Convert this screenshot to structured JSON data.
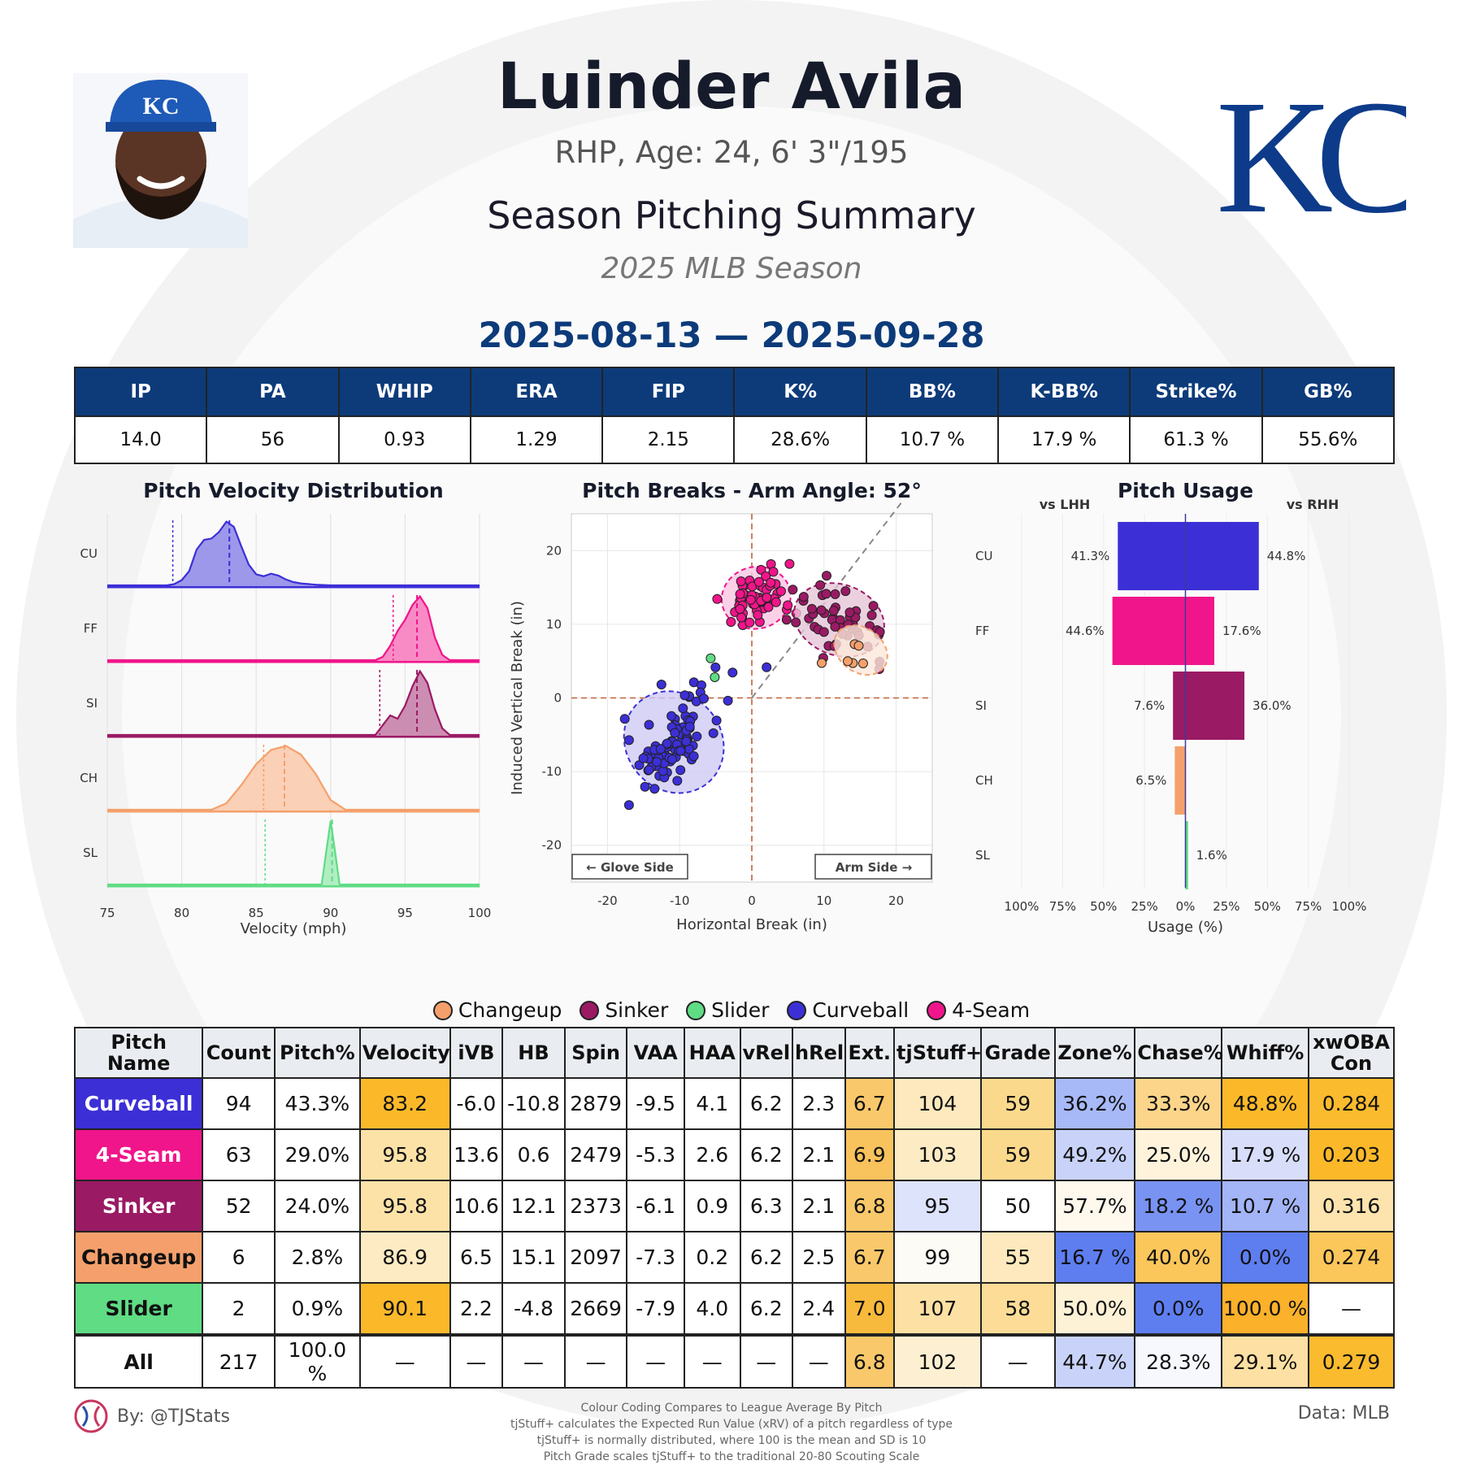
{
  "header": {
    "player_name": "Luinder Avila",
    "bio": "RHP, Age: 24, 6' 3\"/195",
    "summary_title": "Season Pitching Summary",
    "season": "2025 MLB Season",
    "date_range": "2025-08-13 — 2025-09-28"
  },
  "team_logo_text": "KC",
  "season_stats": {
    "headers": [
      "IP",
      "PA",
      "WHIP",
      "ERA",
      "FIP",
      "K%",
      "BB%",
      "K-BB%",
      "Strike%",
      "GB%"
    ],
    "values": [
      "14.0",
      "56",
      "0.93",
      "1.29",
      "2.15",
      "28.6%",
      "10.7 %",
      "17.9 %",
      "61.3 %",
      "55.6%"
    ]
  },
  "colors": {
    "Curveball": "#3c2fd6",
    "4-Seam": "#f0158a",
    "Sinker": "#9a1a64",
    "Changeup": "#f5a06c",
    "Slider": "#5fdc84",
    "header_blue": "#0d3b7a"
  },
  "chart_data": [
    {
      "type": "area",
      "title": "Pitch Velocity Distribution",
      "xlabel": "Velocity (mph)",
      "xlim": [
        75,
        100
      ],
      "xticks": [
        75,
        80,
        85,
        90,
        95,
        100
      ],
      "series": [
        {
          "name": "CU",
          "pitch": "Curveball",
          "mean": 83.2,
          "league_mean": 79.4,
          "x": [
            79,
            79.5,
            80,
            80.5,
            81,
            81.5,
            82,
            82.5,
            83,
            83.5,
            84,
            84.5,
            85,
            85.5,
            86,
            86.5,
            87,
            87.5,
            88,
            89,
            90
          ],
          "y": [
            0,
            0.02,
            0.08,
            0.22,
            0.55,
            0.7,
            0.72,
            0.82,
            0.98,
            0.9,
            0.6,
            0.32,
            0.17,
            0.14,
            0.18,
            0.15,
            0.09,
            0.05,
            0.03,
            0.01,
            0
          ]
        },
        {
          "name": "FF",
          "pitch": "4-Seam",
          "mean": 95.8,
          "league_mean": 94.2,
          "x": [
            93,
            93.5,
            94,
            94.5,
            95,
            95.5,
            96,
            96.5,
            97,
            97.5,
            98
          ],
          "y": [
            0,
            0.05,
            0.22,
            0.45,
            0.62,
            0.85,
            0.98,
            0.8,
            0.35,
            0.08,
            0
          ]
        },
        {
          "name": "SI",
          "pitch": "Sinker",
          "mean": 95.8,
          "league_mean": 93.3,
          "x": [
            93,
            93.5,
            94,
            94.5,
            95,
            95.5,
            96,
            96.5,
            97,
            97.5,
            98
          ],
          "y": [
            0,
            0.15,
            0.3,
            0.25,
            0.45,
            0.75,
            0.98,
            0.8,
            0.4,
            0.1,
            0
          ]
        },
        {
          "name": "CH",
          "pitch": "Changeup",
          "mean": 86.9,
          "league_mean": 85.5,
          "x": [
            82,
            83,
            84,
            85,
            86,
            87,
            88,
            89,
            90,
            91
          ],
          "y": [
            0,
            0.1,
            0.38,
            0.7,
            0.92,
            0.98,
            0.85,
            0.55,
            0.15,
            0
          ]
        },
        {
          "name": "SL",
          "pitch": "Slider",
          "mean": 90.1,
          "league_mean": 85.6,
          "x": [
            89.4,
            89.7,
            90,
            90.3,
            90.6
          ],
          "y": [
            0,
            0.5,
            0.98,
            0.5,
            0
          ]
        }
      ]
    },
    {
      "type": "scatter",
      "title": "Pitch Breaks - Arm Angle: 52°",
      "xlabel": "Horizontal Break (in)",
      "ylabel": "Induced Vertical Break (in)",
      "xlim": [
        -25,
        25
      ],
      "ylim": [
        -25,
        25
      ],
      "xticks": [
        -20,
        -10,
        0,
        10,
        20
      ],
      "yticks": [
        -20,
        -10,
        0,
        10,
        20
      ],
      "arm_angle_deg": 52,
      "side_labels": {
        "left": "← Glove Side",
        "right": "Arm Side →"
      },
      "clusters": [
        {
          "pitch": "Curveball",
          "count": 94,
          "center": [
            -10.8,
            -6.0
          ],
          "spread": [
            3.3,
            3.6
          ],
          "corr": 0.65
        },
        {
          "pitch": "4-Seam",
          "count": 63,
          "center": [
            0.6,
            13.6
          ],
          "spread": [
            2.4,
            2.1
          ],
          "corr": 0.2
        },
        {
          "pitch": "Sinker",
          "count": 52,
          "center": [
            12.1,
            10.6
          ],
          "spread": [
            3.2,
            2.4
          ],
          "corr": -0.3
        },
        {
          "pitch": "Changeup",
          "count": 6,
          "center": [
            15.1,
            6.5
          ],
          "spread": [
            2.0,
            1.5
          ],
          "corr": -0.6
        },
        {
          "pitch": "Slider",
          "count": 2,
          "center": [
            -4.8,
            2.2
          ],
          "spread": [
            0.5,
            1.5
          ],
          "corr": 0
        }
      ]
    },
    {
      "type": "bar",
      "title": "Pitch Usage",
      "xlabel": "Usage (%)",
      "left_label": "vs LHH",
      "right_label": "vs RHH",
      "xticks": [
        "100%",
        "75%",
        "50%",
        "25%",
        "0%",
        "25%",
        "50%",
        "75%",
        "100%"
      ],
      "categories": [
        "CU",
        "FF",
        "SI",
        "CH",
        "SL"
      ],
      "series": [
        {
          "name": "vs LHH",
          "values": [
            41.3,
            44.6,
            7.6,
            6.5,
            0
          ]
        },
        {
          "name": "vs RHH",
          "values": [
            44.8,
            17.6,
            36.0,
            0,
            1.6
          ]
        }
      ]
    }
  ],
  "legend": [
    "Changeup",
    "Sinker",
    "Slider",
    "Curveball",
    "4-Seam"
  ],
  "pitch_table": {
    "headers": [
      "Pitch Name",
      "Count",
      "Pitch%",
      "Velocity",
      "iVB",
      "HB",
      "Spin",
      "VAA",
      "HAA",
      "vRel",
      "hRel",
      "Ext.",
      "tjStuff+",
      "Grade",
      "Zone%",
      "Chase%",
      "Whiff%",
      "xwOBA Con"
    ],
    "rows": [
      {
        "name": "Curveball",
        "cells": [
          "94",
          "43.3%",
          "83.2",
          "-6.0",
          "-10.8",
          "2879",
          "-9.5",
          "4.1",
          "6.2",
          "2.3",
          "6.7",
          "104",
          "59",
          "36.2%",
          "33.3%",
          "48.8%",
          "0.284"
        ],
        "shade": {
          "3": "#fbb92a",
          "11": "#f9c86a",
          "12": "#fde9bd",
          "13": "#fbd98c",
          "14": "#a7b9f7",
          "15": "#fcd58a",
          "16": "#fbb92a",
          "17": "#fbbb2e"
        }
      },
      {
        "name": "4-Seam",
        "cells": [
          "63",
          "29.0%",
          "95.8",
          "13.6",
          "0.6",
          "2479",
          "-5.3",
          "2.6",
          "6.2",
          "2.1",
          "6.9",
          "103",
          "59",
          "49.2%",
          "25.0%",
          "17.9 %",
          "0.203"
        ],
        "shade": {
          "3": "#fde2a8",
          "11": "#f8c25c",
          "12": "#fdebc4",
          "13": "#fbd98c",
          "14": "#c9d3f9",
          "15": "#fff3dc",
          "16": "#d8defa",
          "17": "#fbb92a"
        }
      },
      {
        "name": "Sinker",
        "cells": [
          "52",
          "24.0%",
          "95.8",
          "10.6",
          "12.1",
          "2373",
          "-6.1",
          "0.9",
          "6.3",
          "2.1",
          "6.8",
          "95",
          "50",
          "57.7%",
          "18.2 %",
          "10.7 %",
          "0.316"
        ],
        "shade": {
          "3": "#fde2a8",
          "11": "#f9c86a",
          "12": "#dde3fb",
          "13": "#ffffff",
          "14": "#fff8ec",
          "15": "#7993f2",
          "16": "#a3b5f6",
          "17": "#fde3ad"
        }
      },
      {
        "name": "Changeup",
        "cells": [
          "6",
          "2.8%",
          "86.9",
          "6.5",
          "15.1",
          "2097",
          "-7.3",
          "0.2",
          "6.2",
          "2.5",
          "6.7",
          "99",
          "55",
          "16.7 %",
          "40.0%",
          "0.0%",
          "0.274"
        ],
        "shade": {
          "3": "#fdebc4",
          "11": "#f9c86a",
          "12": "#fdfbf6",
          "13": "#fde9bd",
          "14": "#5e7ef0",
          "15": "#fbc65a",
          "16": "#5e7ef0",
          "17": "#fbc65a"
        }
      },
      {
        "name": "Slider",
        "cells": [
          "2",
          "0.9%",
          "90.1",
          "2.2",
          "-4.8",
          "2669",
          "-7.9",
          "4.0",
          "6.2",
          "2.4",
          "7.0",
          "107",
          "58",
          "50.0%",
          "0.0%",
          "100.0 %",
          "—"
        ],
        "shade": {
          "3": "#fbb92a",
          "11": "#f8ba3c",
          "12": "#fde0a3",
          "13": "#fcdc96",
          "14": "#fdf1d6",
          "15": "#5e7ef0",
          "16": "#fbb12a",
          "17": "#ffffff"
        }
      },
      {
        "name": "All",
        "cells": [
          "217",
          "100.0 %",
          "—",
          "—",
          "—",
          "—",
          "—",
          "—",
          "—",
          "—",
          "6.8",
          "102",
          "—",
          "44.7%",
          "28.3%",
          "29.1%",
          "0.279"
        ],
        "shade": {
          "11": "#f9c86a",
          "12": "#fdf0d2",
          "14": "#c9d3f9",
          "15": "#f7f8fe",
          "16": "#fde0a3",
          "17": "#fbbb2e"
        }
      }
    ]
  },
  "footer": {
    "by": "By: @TJStats",
    "data": "Data: MLB",
    "notes": [
      "Colour Coding Compares to League Average By Pitch",
      "tjStuff+ calculates the Expected Run Value (xRV) of a pitch regardless of type",
      "tjStuff+ is normally distributed, where 100 is the mean and SD is 10",
      "Pitch Grade scales tjStuff+ to the traditional 20-80 Scouting Scale"
    ]
  }
}
